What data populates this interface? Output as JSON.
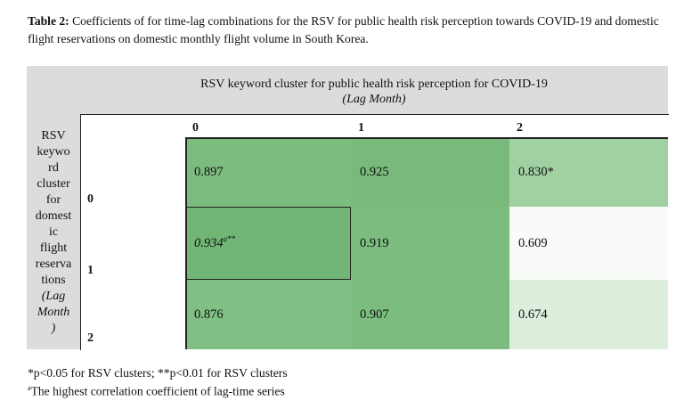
{
  "caption": {
    "label": "Table 2:",
    "text": " Coefficients of for time-lag combinations for the RSV for public health risk perception towards COVID-19 and domestic flight reservations on domestic monthly flight volume in South Korea."
  },
  "header": {
    "title": "RSV keyword cluster for public health risk perception for COVID-19",
    "subtitle": "(Lag Month)"
  },
  "row_label": {
    "lines": [
      "RSV",
      "keywo",
      "rd",
      "cluster",
      "for",
      "domest",
      "ic",
      "flight",
      "reserva",
      "tions"
    ],
    "lag_lines": [
      "(Lag",
      "Month",
      ")"
    ]
  },
  "columns": [
    "0",
    "1",
    "2"
  ],
  "rows": [
    "0",
    "1",
    "2"
  ],
  "cells": [
    [
      {
        "value": "0.897",
        "color": "#7cbd7f"
      },
      {
        "value": "0.925",
        "color": "#79ba7c"
      },
      {
        "value": "0.830*",
        "color": "#a1d0a2"
      }
    ],
    [
      {
        "value": "0.934",
        "sup": "a**",
        "color": "#71b675",
        "italic": true
      },
      {
        "value": "0.919",
        "color": "#7cbd7f"
      },
      {
        "value": "0.609",
        "color": "#f8fbf8"
      }
    ],
    [
      {
        "value": "0.876",
        "color": "#80c084"
      },
      {
        "value": "0.907",
        "color": "#7cbd7f"
      },
      {
        "value": "0.674",
        "color": "#ddeedd"
      }
    ]
  ],
  "footnotes": {
    "line1": "*p<0.05 for RSV clusters; **p<0.01 for RSV clusters",
    "line2_sup": "a",
    "line2": "The highest correlation coefficient of lag-time series"
  }
}
